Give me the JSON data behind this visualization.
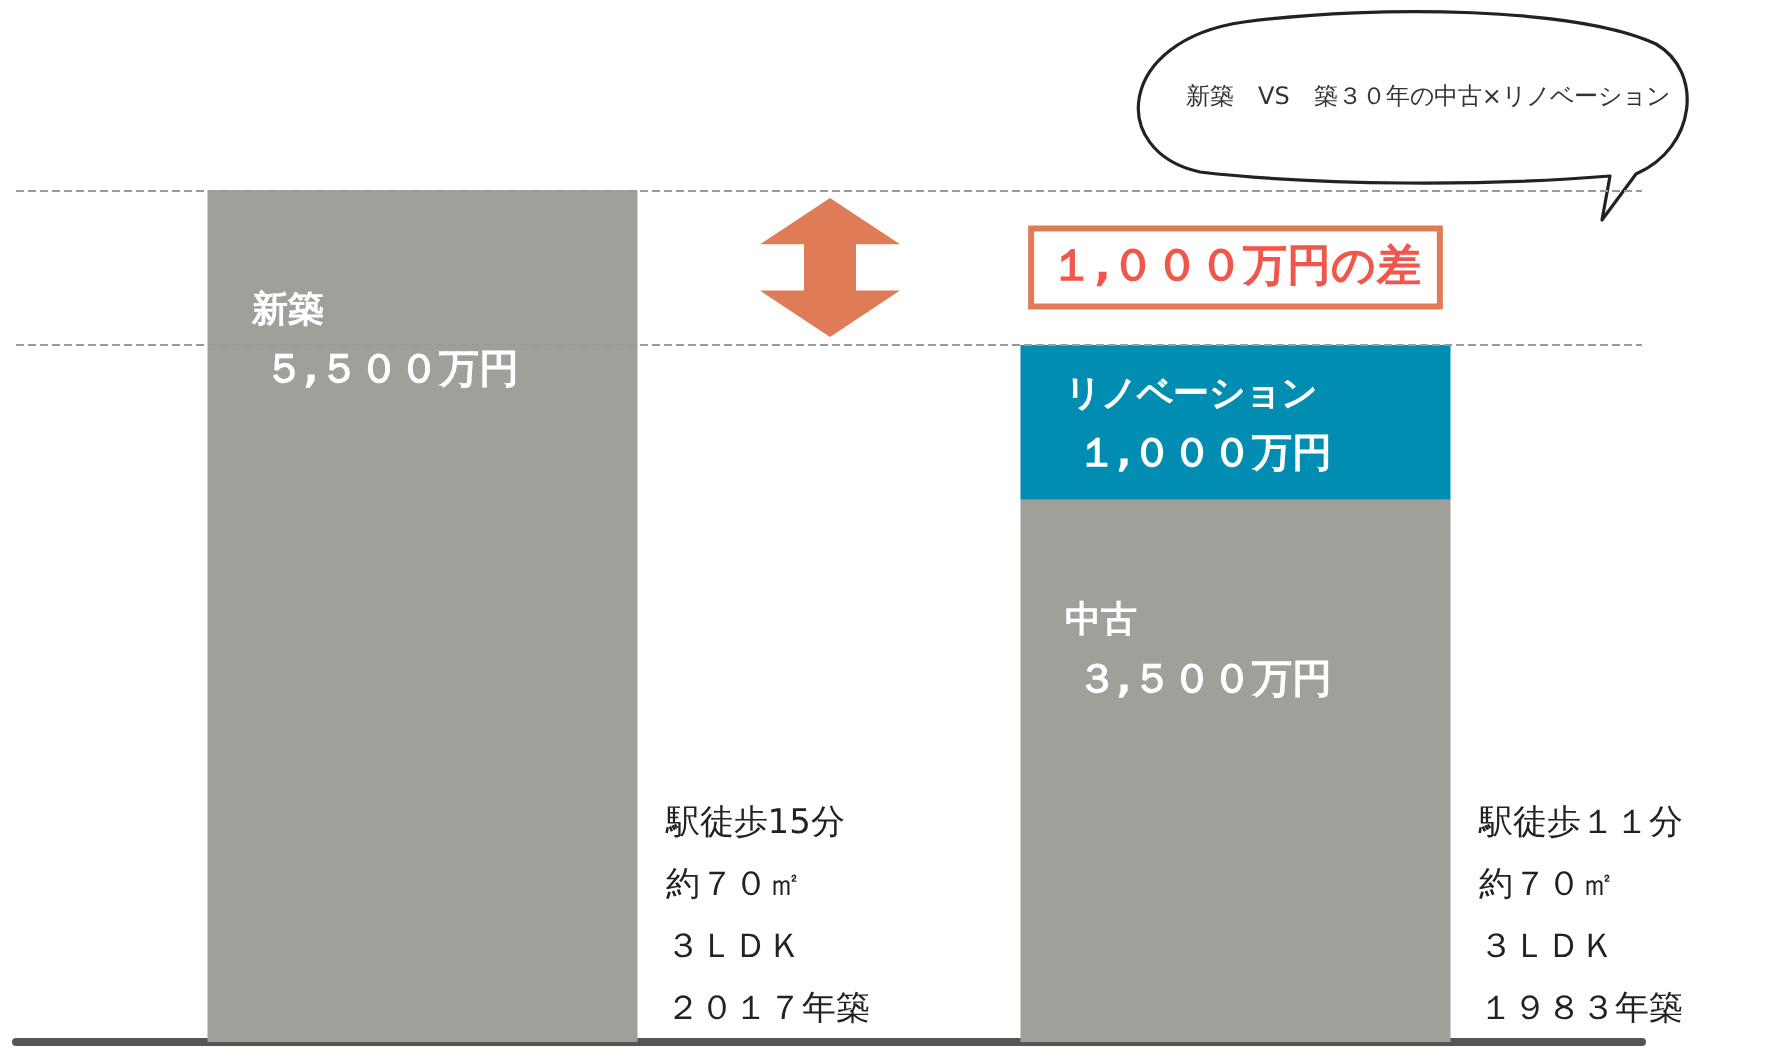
{
  "chart_data": {
    "type": "bar",
    "title": "新築　VS　築３０年の中古×リノベーション",
    "categories": [
      null,
      null
    ],
    "series": [
      {
        "name": "新築",
        "color": "#a09f9a",
        "values": [
          5500,
          null
        ],
        "value_labels": [
          "５,５００万円",
          null
        ]
      },
      {
        "name": "中古",
        "color": "#a09f9a",
        "values": [
          null,
          3500
        ],
        "value_labels": [
          null,
          "３,５００万円"
        ]
      },
      {
        "name": "リノベーション",
        "color": "#008db1",
        "values": [
          null,
          1000
        ],
        "value_labels": [
          null,
          "１,０００万円"
        ]
      }
    ],
    "stacked": true,
    "ref_lines": [
      {
        "axis": "y",
        "value": 5500,
        "color": "#9a9a9a",
        "line_style": "dashed"
      },
      {
        "axis": "y",
        "value": 4500,
        "color": "#9a9a9a",
        "line_style": "dashed"
      }
    ],
    "annotations": [
      "１,０００万円の差",
      "駅徒歩15分",
      "約７０㎡",
      "３ＬＤＫ",
      "２０１７年築",
      "駅徒歩１１分",
      "約７０㎡",
      "３ＬＤＫ",
      "１９８３年築"
    ]
  }
}
